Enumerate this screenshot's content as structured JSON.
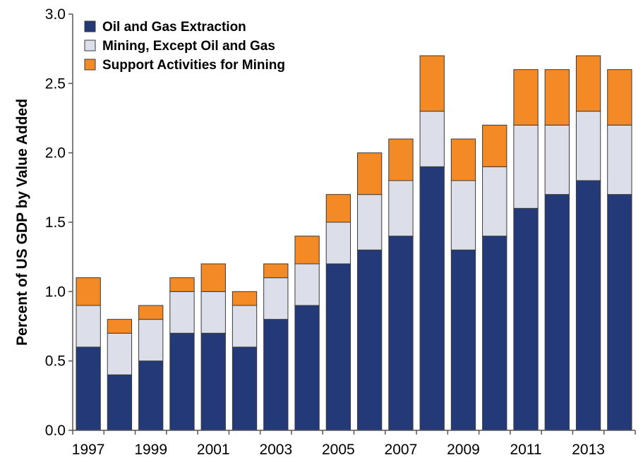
{
  "chart_data": {
    "type": "bar",
    "stacked": true,
    "title": "",
    "xlabel": "",
    "ylabel": "Percent of US GDP by Value Added",
    "ylim": [
      0,
      3.0
    ],
    "y_ticks": [
      "0.0",
      "0.5",
      "1.0",
      "1.5",
      "2.0",
      "2.5",
      "3.0"
    ],
    "categories": [
      "1997",
      "1998",
      "1999",
      "2000",
      "2001",
      "2002",
      "2003",
      "2004",
      "2005",
      "2006",
      "2007",
      "2008",
      "2009",
      "2010",
      "2011",
      "2012",
      "2013",
      "2014"
    ],
    "x_tick_labels": [
      "1997",
      "1999",
      "2001",
      "2003",
      "2005",
      "2007",
      "2009",
      "2011",
      "2013"
    ],
    "legend_position": "top-left",
    "grid": false,
    "series": [
      {
        "name": "Oil and Gas Extraction",
        "color": "#243a78",
        "values": [
          0.6,
          0.4,
          0.5,
          0.7,
          0.7,
          0.6,
          0.8,
          0.9,
          1.2,
          1.3,
          1.4,
          1.9,
          1.3,
          1.4,
          1.6,
          1.7,
          1.8,
          1.7
        ]
      },
      {
        "name": "Mining, Except Oil and Gas",
        "color": "#dcdfea",
        "values": [
          0.3,
          0.3,
          0.3,
          0.3,
          0.3,
          0.3,
          0.3,
          0.3,
          0.3,
          0.4,
          0.4,
          0.4,
          0.5,
          0.5,
          0.6,
          0.5,
          0.5,
          0.5
        ]
      },
      {
        "name": "Support Activities for Mining",
        "color": "#f38a26",
        "values": [
          0.2,
          0.1,
          0.1,
          0.1,
          0.2,
          0.1,
          0.1,
          0.2,
          0.2,
          0.3,
          0.3,
          0.4,
          0.3,
          0.3,
          0.4,
          0.4,
          0.4,
          0.4
        ]
      }
    ]
  }
}
